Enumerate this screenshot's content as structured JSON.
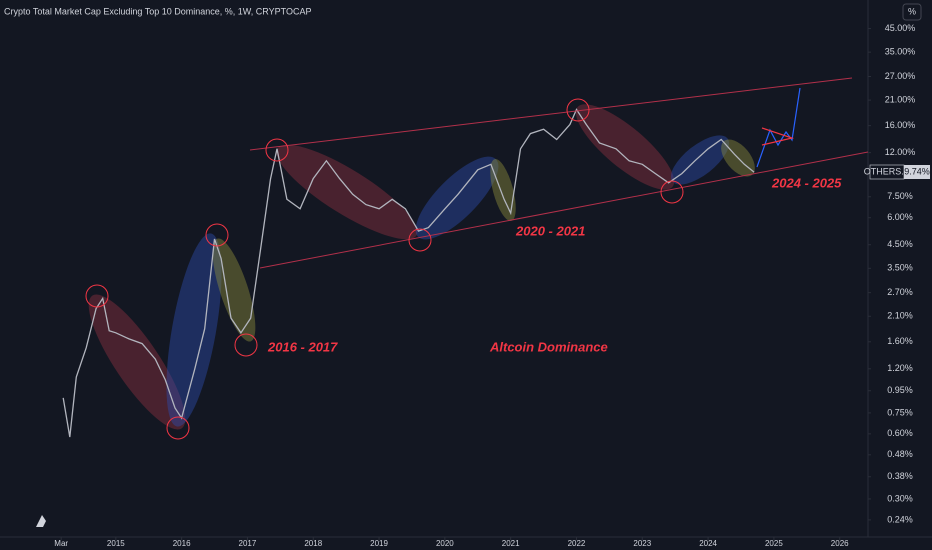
{
  "chart_data": {
    "type": "line",
    "title": "Crypto Total Market Cap Excluding Top 10 Dominance, %, 1W, CRYPTOCAP",
    "symbol": "OTHERS.D",
    "last_price_label": "9.74%",
    "scale_button": "%",
    "annotations": [
      "2016 - 2017",
      "2020 - 2021",
      "2024 - 2025",
      "Altcoin Dominance"
    ],
    "log_scale": true,
    "grid": false,
    "xlim": [
      2013.24,
      2026.43
    ],
    "ylim": [
      0.2,
      61
    ],
    "xticks": [
      {
        "value": 2014.17,
        "label": "Mar"
      },
      2015,
      2016,
      2017,
      2018,
      2019,
      2020,
      2021,
      2022,
      2023,
      2024,
      2025,
      2026
    ],
    "yticks": [
      {
        "value": 45,
        "label": "45.00%"
      },
      {
        "value": 35,
        "label": "35.00%"
      },
      {
        "value": 27,
        "label": "27.00%"
      },
      {
        "value": 21,
        "label": "21.00%"
      },
      {
        "value": 16,
        "label": "16.00%"
      },
      {
        "value": 12,
        "label": "12.00%"
      },
      {
        "value": 7.5,
        "label": "7.50%"
      },
      {
        "value": 6,
        "label": "6.00%"
      },
      {
        "value": 4.5,
        "label": "4.50%"
      },
      {
        "value": 3.5,
        "label": "3.50%"
      },
      {
        "value": 2.7,
        "label": "2.70%"
      },
      {
        "value": 2.1,
        "label": "2.10%"
      },
      {
        "value": 1.6,
        "label": "1.60%"
      },
      {
        "value": 1.2,
        "label": "1.20%"
      },
      {
        "value": 0.95,
        "label": "0.95%"
      },
      {
        "value": 0.75,
        "label": "0.75%"
      },
      {
        "value": 0.6,
        "label": "0.60%"
      },
      {
        "value": 0.48,
        "label": "0.48%"
      },
      {
        "value": 0.38,
        "label": "0.38%"
      },
      {
        "value": 0.3,
        "label": "0.30%"
      },
      {
        "value": 0.24,
        "label": "0.24%"
      }
    ],
    "series": [
      {
        "name": "OTHERS.D",
        "color": "#b2b5be",
        "x": [
          2014.2,
          2014.3,
          2014.4,
          2014.55,
          2014.7,
          2014.8,
          2014.9,
          2015.0,
          2015.2,
          2015.4,
          2015.6,
          2015.75,
          2015.9,
          2016.0,
          2016.2,
          2016.35,
          2016.5,
          2016.6,
          2016.75,
          2016.9,
          2017.05,
          2017.2,
          2017.35,
          2017.45,
          2017.6,
          2017.8,
          2018.0,
          2018.2,
          2018.4,
          2018.6,
          2018.8,
          2019.0,
          2019.2,
          2019.4,
          2019.6,
          2019.75,
          2020.0,
          2020.2,
          2020.5,
          2020.7,
          2020.9,
          2021.0,
          2021.15,
          2021.3,
          2021.5,
          2021.7,
          2021.9,
          2022.0,
          2022.15,
          2022.35,
          2022.6,
          2022.8,
          2023.0,
          2023.2,
          2023.4,
          2023.6,
          2023.8,
          2024.0,
          2024.2,
          2024.4,
          2024.55,
          2024.7
        ],
        "values": [
          0.88,
          0.58,
          1.1,
          1.5,
          2.28,
          2.54,
          1.8,
          1.76,
          1.65,
          1.57,
          1.33,
          1.07,
          0.79,
          0.71,
          1.2,
          1.84,
          4.79,
          3.89,
          2.06,
          1.76,
          2.06,
          4.3,
          9.06,
          12.5,
          7.3,
          6.6,
          9.1,
          11.0,
          9.1,
          7.7,
          6.9,
          6.6,
          7.3,
          6.6,
          5.2,
          5.4,
          6.6,
          7.7,
          10.0,
          10.6,
          7.3,
          6.3,
          12.5,
          14.7,
          15.4,
          13.8,
          16.2,
          19.0,
          16.2,
          13.3,
          12.5,
          11.0,
          10.6,
          9.6,
          8.7,
          9.6,
          11.0,
          12.5,
          13.8,
          11.8,
          10.6,
          9.74
        ]
      }
    ]
  }
}
